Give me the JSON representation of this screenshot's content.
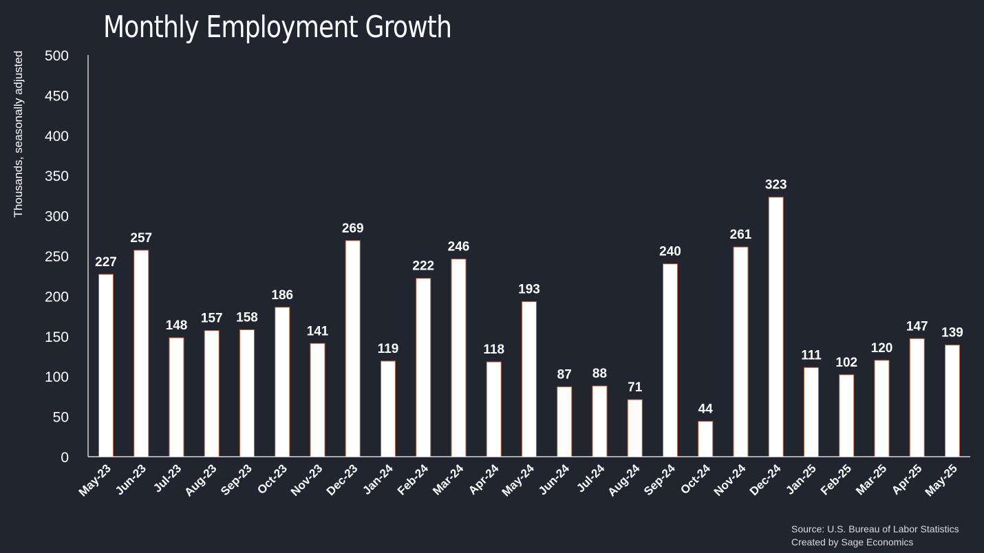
{
  "chart_data": {
    "type": "bar",
    "title": "Monthly Employment Growth",
    "ylabel": "Thousands, seasonally adjusted",
    "xlabel": "",
    "ylim": [
      0,
      500
    ],
    "yticks": [
      0,
      50,
      100,
      150,
      200,
      250,
      300,
      350,
      400,
      450,
      500
    ],
    "grid": false,
    "categories": [
      "May-23",
      "Jun-23",
      "Jul-23",
      "Aug-23",
      "Sep-23",
      "Oct-23",
      "Nov-23",
      "Dec-23",
      "Jan-24",
      "Feb-24",
      "Mar-24",
      "Apr-24",
      "May-24",
      "Jun-24",
      "Jul-24",
      "Aug-24",
      "Sep-24",
      "Oct-24",
      "Nov-24",
      "Dec-24",
      "Jan-25",
      "Feb-25",
      "Mar-25",
      "Apr-25",
      "May-25"
    ],
    "values": [
      227,
      257,
      148,
      157,
      158,
      186,
      141,
      269,
      119,
      222,
      246,
      118,
      193,
      87,
      88,
      71,
      240,
      44,
      261,
      323,
      111,
      102,
      120,
      147,
      139
    ],
    "colors": {
      "background": "#21252f",
      "bar_fill": "#ffffff",
      "bar_stroke": "#c8623a",
      "axis": "#ffffff",
      "text": "#ffffff"
    }
  },
  "source": {
    "line1": "Source: U.S. Bureau of Labor Statistics",
    "line2": "Created by Sage Economics"
  }
}
